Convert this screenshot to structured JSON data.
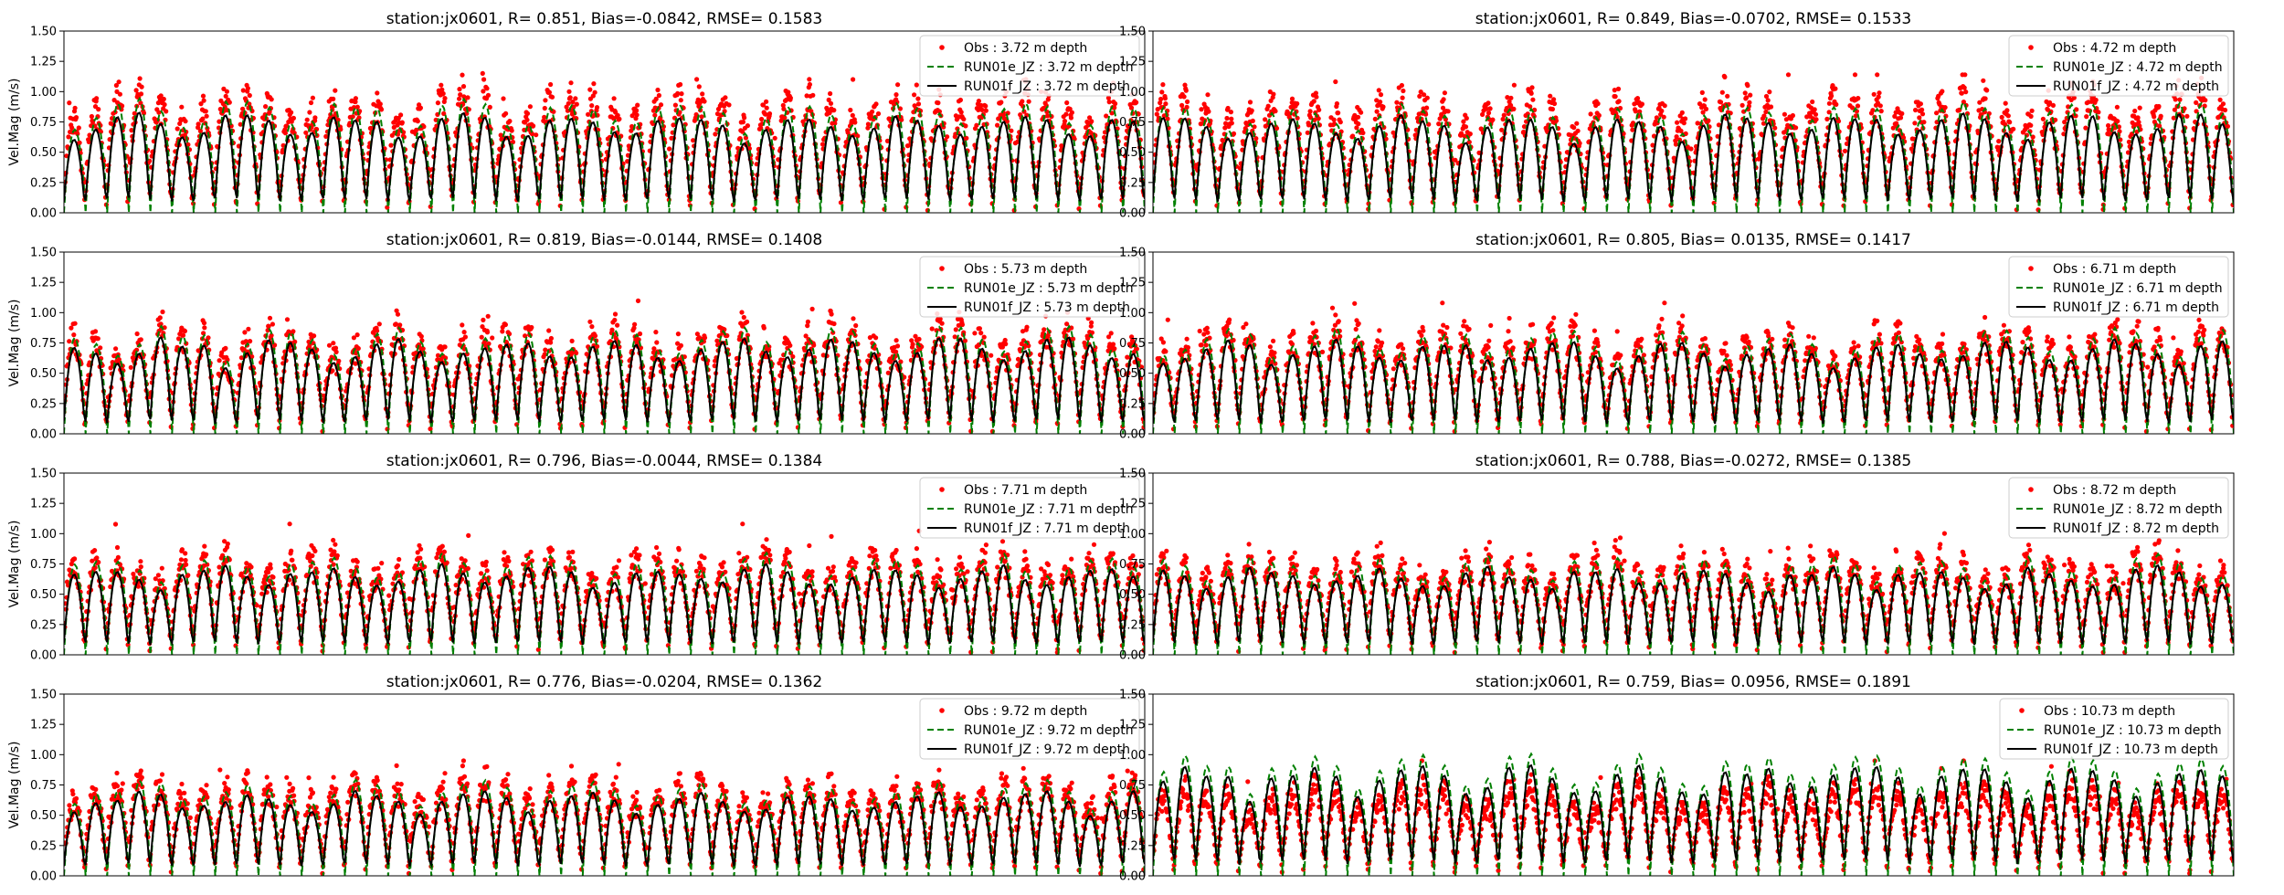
{
  "figure": {
    "ylabel": "Vel.Mag (m/s)",
    "yticks": [
      "0.00",
      "0.25",
      "0.50",
      "0.75",
      "1.00",
      "1.25",
      "1.50"
    ],
    "colors": {
      "obs": "#ff0000",
      "run01e": "#008000",
      "run01f": "#000000"
    }
  },
  "chart_data": [
    {
      "type": "line",
      "title": "station:jx0601, R= 0.851, Bias=-0.0842, RMSE= 0.1583",
      "ylabel": "Vel.Mag (m/s)",
      "ylim": [
        0,
        1.5
      ],
      "xlim": [
        0,
        50
      ],
      "xticks": [],
      "cycles": 50,
      "series": [
        {
          "name": "Obs : 3.72 m depth",
          "style": "markers",
          "peak_mean": 0.82,
          "peak_max": 1.15,
          "trough_min": 0.02
        },
        {
          "name": "RUN01e_JZ : 3.72 m depth",
          "style": "dashed",
          "peak_mean": 0.82,
          "trough_min": 0.0
        },
        {
          "name": "RUN01f_JZ : 3.72 m depth",
          "style": "solid",
          "peak_mean": 0.72,
          "trough_min": 0.0
        }
      ],
      "legend_loc": "upper right"
    },
    {
      "type": "line",
      "title": "station:jx0601, R= 0.849, Bias=-0.0702, RMSE= 0.1533",
      "ylabel": "",
      "ylim": [
        0,
        1.5
      ],
      "xlim": [
        0,
        50
      ],
      "xticks": [],
      "cycles": 50,
      "series": [
        {
          "name": "Obs : 4.72 m depth",
          "style": "markers",
          "peak_mean": 0.82,
          "peak_max": 1.14,
          "trough_min": 0.02
        },
        {
          "name": "RUN01e_JZ : 4.72 m depth",
          "style": "dashed",
          "peak_mean": 0.8,
          "trough_min": 0.0
        },
        {
          "name": "RUN01f_JZ : 4.72 m depth",
          "style": "solid",
          "peak_mean": 0.72,
          "trough_min": 0.0
        }
      ],
      "legend_loc": "upper right"
    },
    {
      "type": "line",
      "title": "station:jx0601, R= 0.819, Bias=-0.0144, RMSE= 0.1408",
      "ylabel": "Vel.Mag (m/s)",
      "ylim": [
        0,
        1.5
      ],
      "xlim": [
        0,
        50
      ],
      "xticks": [],
      "cycles": 50,
      "series": [
        {
          "name": "Obs : 5.73 m depth",
          "style": "markers",
          "peak_mean": 0.74,
          "peak_max": 1.1,
          "trough_min": 0.02
        },
        {
          "name": "RUN01e_JZ : 5.73 m depth",
          "style": "dashed",
          "peak_mean": 0.78,
          "trough_min": 0.0
        },
        {
          "name": "RUN01f_JZ : 5.73 m depth",
          "style": "solid",
          "peak_mean": 0.7,
          "trough_min": 0.0
        }
      ],
      "legend_loc": "upper right"
    },
    {
      "type": "line",
      "title": "station:jx0601, R= 0.805, Bias= 0.0135, RMSE= 0.1417",
      "ylabel": "",
      "ylim": [
        0,
        1.5
      ],
      "xlim": [
        0,
        50
      ],
      "xticks": [],
      "cycles": 50,
      "series": [
        {
          "name": "Obs : 6.71 m depth",
          "style": "markers",
          "peak_mean": 0.72,
          "peak_max": 1.08,
          "trough_min": 0.02
        },
        {
          "name": "RUN01e_JZ : 6.71 m depth",
          "style": "dashed",
          "peak_mean": 0.76,
          "trough_min": 0.0
        },
        {
          "name": "RUN01f_JZ : 6.71 m depth",
          "style": "solid",
          "peak_mean": 0.68,
          "trough_min": 0.0
        }
      ],
      "legend_loc": "upper right"
    },
    {
      "type": "line",
      "title": "station:jx0601, R= 0.796, Bias=-0.0044, RMSE= 0.1384",
      "ylabel": "Vel.Mag (m/s)",
      "ylim": [
        0,
        1.5
      ],
      "xlim": [
        0,
        50
      ],
      "xticks": [],
      "cycles": 50,
      "series": [
        {
          "name": "Obs : 7.71 m depth",
          "style": "markers",
          "peak_mean": 0.7,
          "peak_max": 1.08,
          "trough_min": 0.02
        },
        {
          "name": "RUN01e_JZ : 7.71 m depth",
          "style": "dashed",
          "peak_mean": 0.74,
          "trough_min": 0.0
        },
        {
          "name": "RUN01f_JZ : 7.71 m depth",
          "style": "solid",
          "peak_mean": 0.66,
          "trough_min": 0.0
        }
      ],
      "legend_loc": "upper right"
    },
    {
      "type": "line",
      "title": "station:jx0601, R= 0.788, Bias=-0.0272, RMSE= 0.1385",
      "ylabel": "",
      "ylim": [
        0,
        1.5
      ],
      "xlim": [
        0,
        50
      ],
      "xticks": [],
      "cycles": 50,
      "series": [
        {
          "name": "Obs : 8.72 m depth",
          "style": "markers",
          "peak_mean": 0.68,
          "peak_max": 1.02,
          "trough_min": 0.02
        },
        {
          "name": "RUN01e_JZ : 8.72 m depth",
          "style": "dashed",
          "peak_mean": 0.72,
          "trough_min": 0.0
        },
        {
          "name": "RUN01f_JZ : 8.72 m depth",
          "style": "solid",
          "peak_mean": 0.64,
          "trough_min": 0.0
        }
      ],
      "legend_loc": "upper right"
    },
    {
      "type": "line",
      "title": "station:jx0601, R= 0.776, Bias=-0.0204, RMSE= 0.1362",
      "ylabel": "Vel.Mag (m/s)",
      "ylim": [
        0,
        1.5
      ],
      "xlim": [
        0,
        50
      ],
      "xticks": [],
      "cycles": 50,
      "series": [
        {
          "name": "Obs : 9.72 m depth",
          "style": "markers",
          "peak_mean": 0.66,
          "peak_max": 0.95,
          "trough_min": 0.02
        },
        {
          "name": "RUN01e_JZ : 9.72 m depth",
          "style": "dashed",
          "peak_mean": 0.7,
          "trough_min": 0.0
        },
        {
          "name": "RUN01f_JZ : 9.72 m depth",
          "style": "solid",
          "peak_mean": 0.62,
          "trough_min": 0.0
        }
      ],
      "legend_loc": "upper right"
    },
    {
      "type": "line",
      "title": "station:jx0601, R= 0.759, Bias= 0.0956, RMSE= 0.1891",
      "ylabel": "",
      "ylim": [
        0,
        1.5
      ],
      "xlim": [
        0,
        50
      ],
      "xticks": [],
      "cycles": 50,
      "series": [
        {
          "name": "Obs : 10.73 m depth",
          "style": "markers",
          "peak_mean": 0.6,
          "peak_max": 0.95,
          "trough_min": 0.02
        },
        {
          "name": "RUN01e_JZ : 10.73 m depth",
          "style": "dashed",
          "peak_mean": 0.88,
          "trough_min": 0.0
        },
        {
          "name": "RUN01f_JZ : 10.73 m depth",
          "style": "solid",
          "peak_mean": 0.8,
          "trough_min": 0.0
        }
      ],
      "legend_loc": "upper right"
    }
  ]
}
